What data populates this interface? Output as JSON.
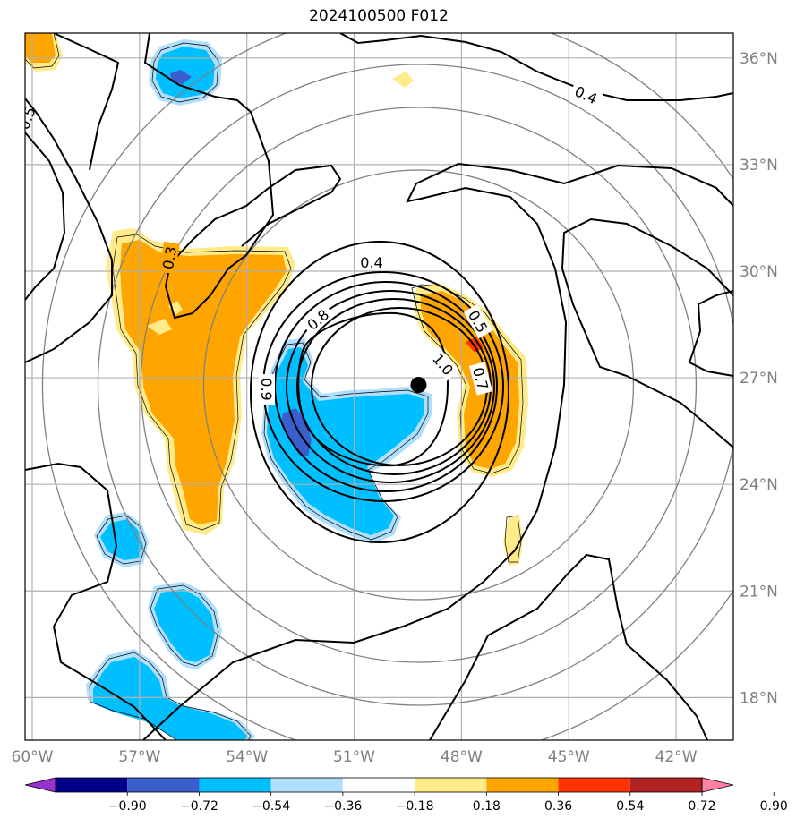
{
  "title": "2024100500 F012",
  "map": {
    "lon_range": [
      -60.2,
      -40.4
    ],
    "lat_range": [
      16.8,
      36.7
    ],
    "lon_ticks": [
      {
        "lon": -60,
        "label": "60°W"
      },
      {
        "lon": -57,
        "label": "57°W"
      },
      {
        "lon": -54,
        "label": "54°W"
      },
      {
        "lon": -51,
        "label": "51°W"
      },
      {
        "lon": -48,
        "label": "48°W"
      },
      {
        "lon": -45,
        "label": "45°W"
      },
      {
        "lon": -42,
        "label": "42°W"
      }
    ],
    "lat_ticks": [
      {
        "lat": 36,
        "label": "36°N"
      },
      {
        "lat": 33,
        "label": "33°N"
      },
      {
        "lat": 30,
        "label": "30°N"
      },
      {
        "lat": 27,
        "label": "27°N"
      },
      {
        "lat": 24,
        "label": "24°N"
      },
      {
        "lat": 21,
        "label": "21°N"
      },
      {
        "lat": 18,
        "label": "18°N"
      }
    ],
    "storm_center": {
      "lon": -49.2,
      "lat": 26.8
    },
    "range_rings": "concentric gray circles around storm center",
    "contour_labels": [
      "0.4",
      "0.4",
      "0.8",
      "1.0",
      "0.9",
      "0.7",
      "0.5",
      "0.3",
      "0.5"
    ],
    "colors": {
      "ring": "#808080",
      "grid": "#b0b0b0",
      "contour": "#000000",
      "orange": "#ffa500",
      "yellow": "#ffeb8a",
      "cyan": "#00bfff",
      "lightblue": "#afdffc",
      "royalblue": "#3a5fcd",
      "red": "#ff3300"
    }
  },
  "colorbar": {
    "labels": [
      "−0.90",
      "−0.72",
      "−0.54",
      "−0.36",
      "−0.18",
      "0.18",
      "0.36",
      "0.54",
      "0.72",
      "0.90"
    ],
    "colors": [
      "#9932cc",
      "#00008b",
      "#3a5fcd",
      "#00bfff",
      "#afdffc",
      "#ffffff",
      "#ffeb8a",
      "#ffa500",
      "#ff3300",
      "#b22222",
      "#ff80a0"
    ]
  }
}
